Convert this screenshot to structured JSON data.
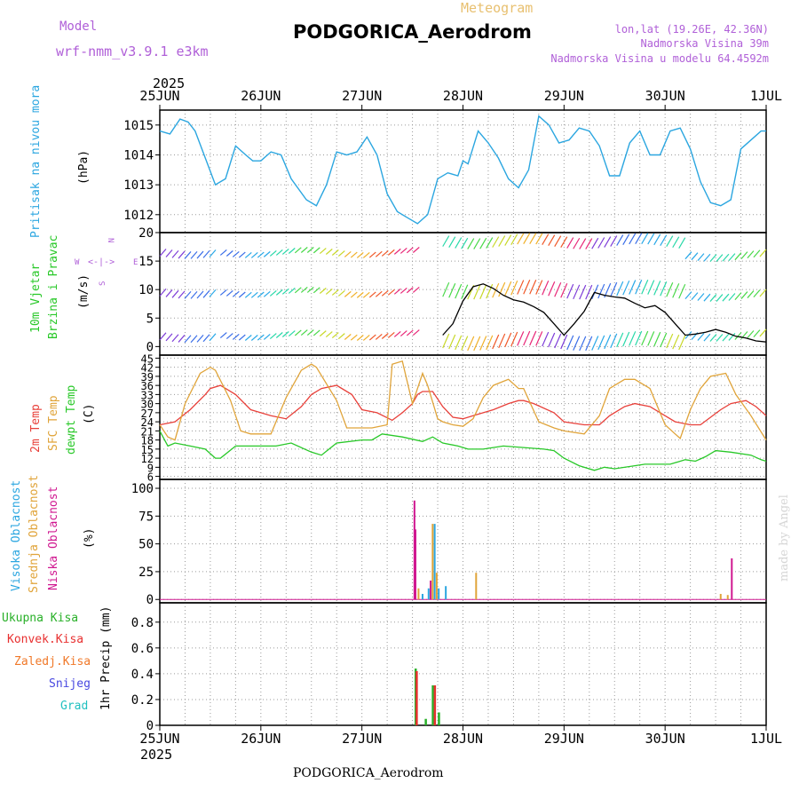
{
  "header": {
    "model_label": "Model",
    "model_name": "wrf-nmm_v3.9.1 e3km",
    "meteogram": "Meteogram",
    "station": "PODGORICA_Aerodrom",
    "lonlat": "lon,lat (19.26E, 42.36N)",
    "elevation": "Nadmorska Visina 39m",
    "model_elevation": "Nadmorska Visina u modelu 64.4592m",
    "year_top": "2025",
    "year_bottom": "2025",
    "footer_station": "PODGORICA_Aerodrom",
    "credit": "made by Angel"
  },
  "colors": {
    "pressure": "#2ba6e0",
    "temp2m": "#e8403a",
    "sfc": "#e0a43a",
    "dewpt": "#28c828",
    "high_cloud": "#2ba6e0",
    "mid_cloud": "#e0a43a",
    "low_cloud": "#d01890",
    "total_precip": "#28b028",
    "conv_precip": "#e83030",
    "frozen": "#f07828",
    "snow": "#4848e0",
    "graupel": "#20c0c0",
    "wind": "#000000"
  },
  "time_axis": [
    "25JUN",
    "26JUN",
    "27JUN",
    "28JUN",
    "29JUN",
    "30JUN",
    "1JUL"
  ],
  "panels": {
    "pressure": {
      "label": "Pritisak na nivou mora",
      "unit": "(hPa)",
      "ylim": [
        1011.4,
        1015.5
      ],
      "ticks": [
        "1015",
        "1014",
        "1013",
        "1012"
      ]
    },
    "wind": {
      "label1": "10m Vjetar",
      "label2": "Brzina i Pravac",
      "unit": "(m/s)",
      "ylim": [
        -1.5,
        20
      ],
      "ticks": [
        "20",
        "15",
        "10",
        "5",
        "0"
      ],
      "compass": {
        "n": "N",
        "s": "S",
        "e": "E",
        "w": "W",
        "arrow": "<-|->"
      }
    },
    "temperature": {
      "label1": "2m Temp",
      "label2": "SFC Temp",
      "label3": "dewpt Temp",
      "unit": "(C)",
      "ylim": [
        5,
        46
      ],
      "ticks": [
        "45",
        "42",
        "39",
        "36",
        "33",
        "30",
        "27",
        "24",
        "21",
        "18",
        "15",
        "12",
        "9",
        "6"
      ]
    },
    "cloud": {
      "label1": "Visoka Oblacnost",
      "label2": "Srednja Oblacnost",
      "label3": "Niska Oblacnost",
      "unit": "(%)",
      "ylim": [
        -3,
        108
      ],
      "ticks": [
        "100",
        "75",
        "50",
        "25",
        "0"
      ]
    },
    "precip": {
      "label1": "Ukupna Kisa",
      "label2": "Konvek.Kisa",
      "label3": "Zaledj.Kisa",
      "label4": "Snijeg",
      "label5": "Grad",
      "unit": "1hr Precip (mm)",
      "ylim": [
        0,
        0.95
      ],
      "ticks": [
        "0.8",
        "0.6",
        "0.4",
        "0.2",
        "0"
      ]
    }
  },
  "chart_data": {
    "type": "line",
    "title": "PODGORICA_Aerodrom Meteogram",
    "x_range_days": [
      0,
      6
    ],
    "pressure_hPa": {
      "x": [
        0,
        0.1,
        0.2,
        0.28,
        0.35,
        0.45,
        0.55,
        0.65,
        0.75,
        0.85,
        0.92,
        1.0,
        1.1,
        1.2,
        1.3,
        1.45,
        1.55,
        1.65,
        1.75,
        1.85,
        1.95,
        2.05,
        2.15,
        2.25,
        2.35,
        2.45,
        2.55,
        2.65,
        2.75,
        2.85,
        2.95,
        3.0,
        3.05,
        3.15,
        3.25,
        3.35,
        3.45,
        3.55,
        3.65,
        3.75,
        3.85,
        3.95,
        4.05,
        4.15,
        4.25,
        4.35,
        4.45,
        4.55,
        4.65,
        4.75,
        4.85,
        4.95,
        5.05,
        5.15,
        5.25,
        5.35,
        5.45,
        5.55,
        5.65,
        5.75,
        5.85,
        5.95,
        6.0
      ],
      "y": [
        1014.8,
        1014.7,
        1015.2,
        1015.1,
        1014.8,
        1013.9,
        1013.0,
        1013.2,
        1014.3,
        1014.0,
        1013.8,
        1013.8,
        1014.1,
        1014.0,
        1013.2,
        1012.5,
        1012.3,
        1013.0,
        1014.1,
        1014.0,
        1014.1,
        1014.6,
        1014.0,
        1012.7,
        1012.1,
        1011.9,
        1011.7,
        1012.0,
        1013.2,
        1013.4,
        1013.3,
        1013.8,
        1013.7,
        1014.8,
        1014.4,
        1013.9,
        1013.2,
        1012.9,
        1013.5,
        1015.3,
        1015.0,
        1014.4,
        1014.5,
        1014.9,
        1014.8,
        1014.3,
        1013.3,
        1013.3,
        1014.4,
        1014.8,
        1014.0,
        1014.0,
        1014.8,
        1014.9,
        1014.2,
        1013.1,
        1012.4,
        1012.3,
        1012.5,
        1014.2,
        1014.5,
        1014.8,
        1014.8
      ]
    },
    "wind_speed_ms": {
      "x": [
        2.8,
        2.9,
        3.0,
        3.1,
        3.2,
        3.3,
        3.4,
        3.5,
        3.6,
        3.7,
        3.8,
        3.9,
        4.0,
        4.1,
        4.2,
        4.3,
        4.4,
        4.5,
        4.6,
        4.7,
        4.8,
        4.9,
        5.0,
        5.1,
        5.2,
        5.3,
        5.4,
        5.5,
        5.6,
        5.7,
        5.8,
        5.9,
        6.0
      ],
      "y": [
        2.0,
        4.0,
        8.0,
        10.5,
        11.0,
        10.2,
        9.0,
        8.2,
        7.8,
        7.0,
        6.0,
        4.0,
        2.0,
        4.0,
        6.2,
        9.5,
        9.0,
        8.7,
        8.5,
        7.6,
        6.8,
        7.2,
        6.0,
        4.0,
        2.0,
        2.2,
        2.5,
        3.0,
        2.5,
        1.8,
        1.5,
        1.0,
        0.8
      ]
    },
    "temp2m_C": {
      "x": [
        0,
        0.15,
        0.3,
        0.45,
        0.5,
        0.6,
        0.75,
        0.9,
        1.0,
        1.1,
        1.25,
        1.4,
        1.5,
        1.6,
        1.75,
        1.9,
        2.0,
        2.15,
        2.3,
        2.4,
        2.5,
        2.55,
        2.6,
        2.7,
        2.8,
        2.9,
        3.0,
        3.1,
        3.2,
        3.3,
        3.45,
        3.55,
        3.6,
        3.7,
        3.9,
        4.0,
        4.2,
        4.35,
        4.45,
        4.6,
        4.7,
        4.85,
        5.0,
        5.1,
        5.25,
        5.35,
        5.45,
        5.55,
        5.65,
        5.8,
        5.9,
        6.0
      ],
      "y": [
        23,
        24,
        28,
        33,
        35,
        36,
        33,
        28,
        27,
        26,
        25,
        29,
        33,
        35,
        36,
        33,
        28,
        27,
        24.5,
        27,
        30,
        33,
        34,
        34,
        29,
        25.5,
        25,
        26,
        27,
        28,
        30,
        31,
        31,
        30,
        27,
        24,
        23,
        23,
        26,
        29,
        30,
        29,
        26,
        24,
        23,
        23,
        25.5,
        28,
        30,
        31,
        29,
        26
      ]
    },
    "sfc_temp_C": {
      "x": [
        0,
        0.08,
        0.15,
        0.25,
        0.4,
        0.5,
        0.55,
        0.7,
        0.8,
        0.9,
        1.0,
        1.1,
        1.25,
        1.4,
        1.5,
        1.55,
        1.75,
        1.85,
        2.0,
        2.1,
        2.25,
        2.3,
        2.4,
        2.5,
        2.6,
        2.65,
        2.75,
        2.8,
        2.9,
        3.0,
        3.1,
        3.2,
        3.3,
        3.45,
        3.55,
        3.6,
        3.75,
        3.9,
        4.0,
        4.2,
        4.35,
        4.45,
        4.6,
        4.7,
        4.85,
        5.0,
        5.1,
        5.15,
        5.25,
        5.35,
        5.45,
        5.6,
        5.7,
        5.85,
        6.0
      ],
      "y": [
        23,
        19,
        18,
        30,
        40,
        42,
        41,
        31,
        21,
        20,
        20,
        20,
        32,
        41,
        43,
        42,
        31,
        22,
        22,
        22,
        23,
        43,
        44,
        30,
        40,
        36,
        25,
        24,
        23,
        22.5,
        25,
        32,
        36,
        38,
        35,
        35,
        24,
        22,
        21,
        20,
        26,
        35,
        38,
        38,
        35,
        23,
        20,
        18.5,
        28,
        35,
        39,
        40,
        33,
        26,
        18
      ]
    },
    "dewpt_C": {
      "x": [
        0,
        0.08,
        0.15,
        0.3,
        0.45,
        0.55,
        0.6,
        0.75,
        1.0,
        1.15,
        1.3,
        1.5,
        1.6,
        1.75,
        2.0,
        2.1,
        2.2,
        2.4,
        2.6,
        2.7,
        2.8,
        2.95,
        3.05,
        3.2,
        3.4,
        3.6,
        3.8,
        3.9,
        4.0,
        4.15,
        4.3,
        4.4,
        4.5,
        4.7,
        4.8,
        4.9,
        5.05,
        5.2,
        5.3,
        5.4,
        5.5,
        5.65,
        5.85,
        5.95,
        6.0
      ],
      "y": [
        21,
        16,
        17,
        16,
        15,
        12,
        12,
        16,
        16,
        16,
        17,
        14,
        13,
        17,
        18,
        18,
        20,
        19,
        17.5,
        19,
        17,
        16,
        15,
        15,
        16,
        15.5,
        15,
        14.5,
        12,
        9.5,
        8,
        9,
        8.5,
        9.5,
        10,
        10,
        10,
        11.5,
        11,
        12.5,
        14.5,
        14,
        13,
        11.5,
        11
      ]
    },
    "cloud_pct": {
      "bars": [
        {
          "x": 2.52,
          "layer": "low",
          "value": 89
        },
        {
          "x": 2.53,
          "layer": "low",
          "value": 63
        },
        {
          "x": 2.56,
          "layer": "mid",
          "value": 10
        },
        {
          "x": 2.6,
          "layer": "high",
          "value": 5
        },
        {
          "x": 2.66,
          "layer": "high",
          "value": 10
        },
        {
          "x": 2.68,
          "layer": "low",
          "value": 17
        },
        {
          "x": 2.7,
          "layer": "mid",
          "value": 68
        },
        {
          "x": 2.72,
          "layer": "high",
          "value": 68
        },
        {
          "x": 2.74,
          "layer": "mid",
          "value": 24
        },
        {
          "x": 2.76,
          "layer": "high",
          "value": 10
        },
        {
          "x": 2.83,
          "layer": "high",
          "value": 12
        },
        {
          "x": 3.13,
          "layer": "mid",
          "value": 24
        },
        {
          "x": 5.55,
          "layer": "mid",
          "value": 5
        },
        {
          "x": 5.62,
          "layer": "mid",
          "value": 4
        },
        {
          "x": 5.66,
          "layer": "low",
          "value": 37
        }
      ]
    },
    "precip_mm": {
      "bars": [
        {
          "x": 2.53,
          "type": "total",
          "value": 0.44
        },
        {
          "x": 2.54,
          "type": "convective",
          "value": 0.42
        },
        {
          "x": 2.63,
          "type": "total",
          "value": 0.05
        },
        {
          "x": 2.7,
          "type": "total",
          "value": 0.31
        },
        {
          "x": 2.72,
          "type": "convective",
          "value": 0.31
        },
        {
          "x": 2.76,
          "type": "total",
          "value": 0.1
        }
      ]
    }
  }
}
